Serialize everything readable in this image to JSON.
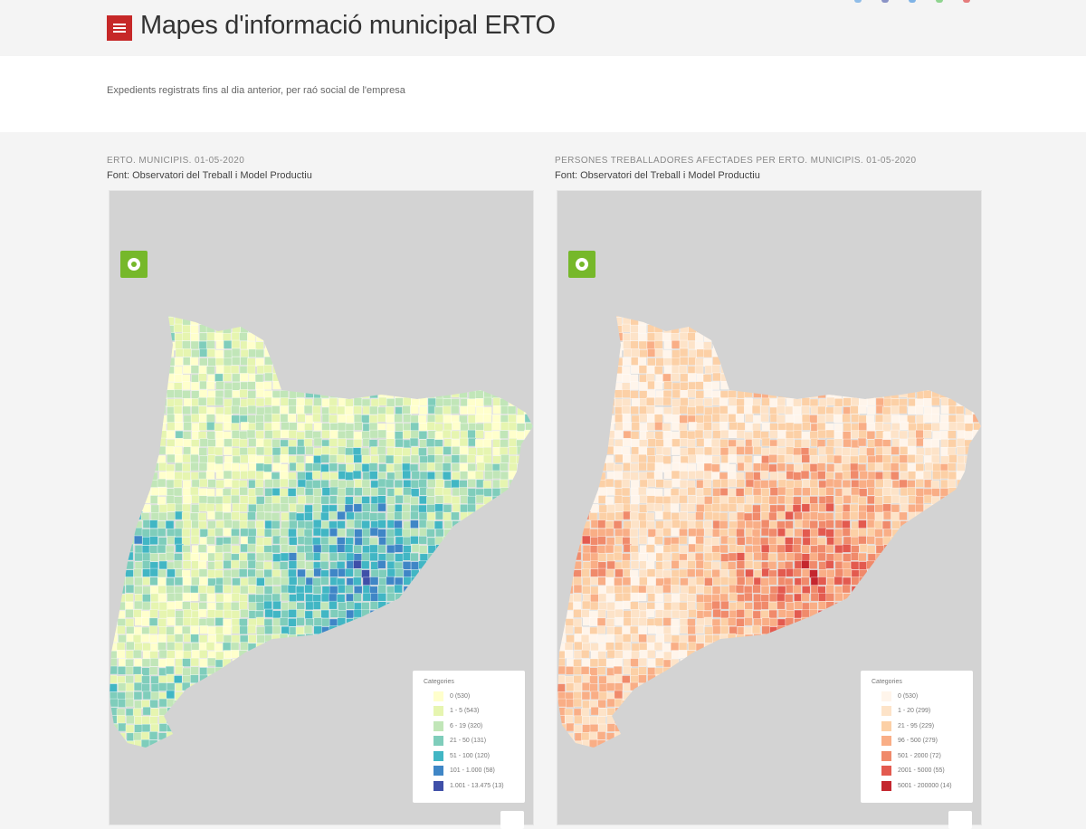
{
  "header": {
    "title": "Mapes d'informació municipal ERTO",
    "share_colors": [
      "#90bde8",
      "#8a93c6",
      "#7fb3e6",
      "#8fd48f",
      "#e57c7c"
    ]
  },
  "intro": {
    "subtitle": "Expedients registrats fins al dia anterior, per raó social de l'empresa"
  },
  "maps": [
    {
      "title": "ERTO. MUNICIPIS. 01-05-2020",
      "source": "Font: Observatori del Treball i Model Productiu",
      "legend_title": "Categories",
      "legend": [
        {
          "label": "0 (530)",
          "color": "#ffffcc"
        },
        {
          "label": "1 - 5 (543)",
          "color": "#e6f5b0"
        },
        {
          "label": "6 - 19 (320)",
          "color": "#c1e6b8"
        },
        {
          "label": "21 - 50 (131)",
          "color": "#7fcdbb"
        },
        {
          "label": "51 - 100 (120)",
          "color": "#41b6c4"
        },
        {
          "label": "101 - 1.000 (58)",
          "color": "#3f86c6"
        },
        {
          "label": "1.001 - 13.475 (13)",
          "color": "#3f4fa8"
        }
      ]
    },
    {
      "title": "PERSONES TREBALLADORES AFECTADES PER ERTO. MUNICIPIS. 01-05-2020",
      "source": "Font: Observatori del Treball i Model Productiu",
      "legend_title": "Categories",
      "legend": [
        {
          "label": "0 (530)",
          "color": "#fff5eb"
        },
        {
          "label": "1 - 20 (299)",
          "color": "#fde3c8"
        },
        {
          "label": "21 - 95 (229)",
          "color": "#fcd0a6"
        },
        {
          "label": "96 - 500 (279)",
          "color": "#f9ae86"
        },
        {
          "label": "501 - 2000 (72)",
          "color": "#f08a6b"
        },
        {
          "label": "2001 - 5000 (55)",
          "color": "#e35a4f"
        },
        {
          "label": "5001 - 200000 (14)",
          "color": "#c4262e"
        }
      ]
    }
  ]
}
